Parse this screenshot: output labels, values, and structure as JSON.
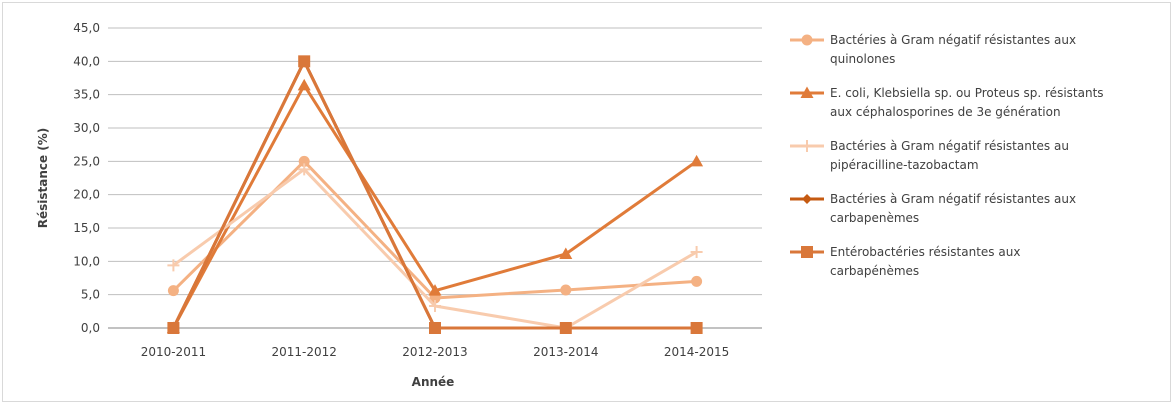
{
  "chart_data": {
    "type": "line",
    "xlabel": "Année",
    "ylabel": "Résistance (%)",
    "categories": [
      "2010-2011",
      "2011-2012",
      "2012-2013",
      "2013-2014",
      "2014-2015"
    ],
    "ylim": [
      0,
      45
    ],
    "yticks": [
      "0,0",
      "5,0",
      "10,0",
      "15,0",
      "20,0",
      "25,0",
      "30,0",
      "35,0",
      "40,0",
      "45,0"
    ],
    "grid": true,
    "legend_position": "right",
    "series": [
      {
        "name_lines": [
          "Bactéries à Gram négatif résistantes aux",
          "quinolones"
        ],
        "marker": "circle",
        "color": "#f4b183",
        "values": [
          5.6,
          25.0,
          4.5,
          5.7,
          7.0
        ]
      },
      {
        "name_lines": [
          "E. coli, Klebsiella sp. ou Proteus sp. résistants",
          "aux céphalosporines de 3e génération"
        ],
        "marker": "triangle",
        "color": "#e07b39",
        "values": [
          0.0,
          36.4,
          5.6,
          11.1,
          25.0
        ]
      },
      {
        "name_lines": [
          "Bactéries à Gram négatif résistantes au",
          "pipéracilline-tazobactam"
        ],
        "marker": "plus",
        "color": "#f8cbad",
        "values": [
          9.4,
          23.8,
          3.3,
          0.0,
          11.4
        ]
      },
      {
        "name_lines": [
          "Bactéries à Gram négatif résistantes aux",
          "carbapenèmes"
        ],
        "marker": "diamond",
        "color": "#c55a11",
        "values": [
          0.0,
          40.0,
          0.0,
          0.0,
          0.0
        ]
      },
      {
        "name_lines": [
          "Entérobactéries résistantes aux",
          "carbapénèmes"
        ],
        "marker": "square",
        "color": "#d9773a",
        "values": [
          0.0,
          40.0,
          0.0,
          0.0,
          0.0
        ]
      }
    ]
  }
}
